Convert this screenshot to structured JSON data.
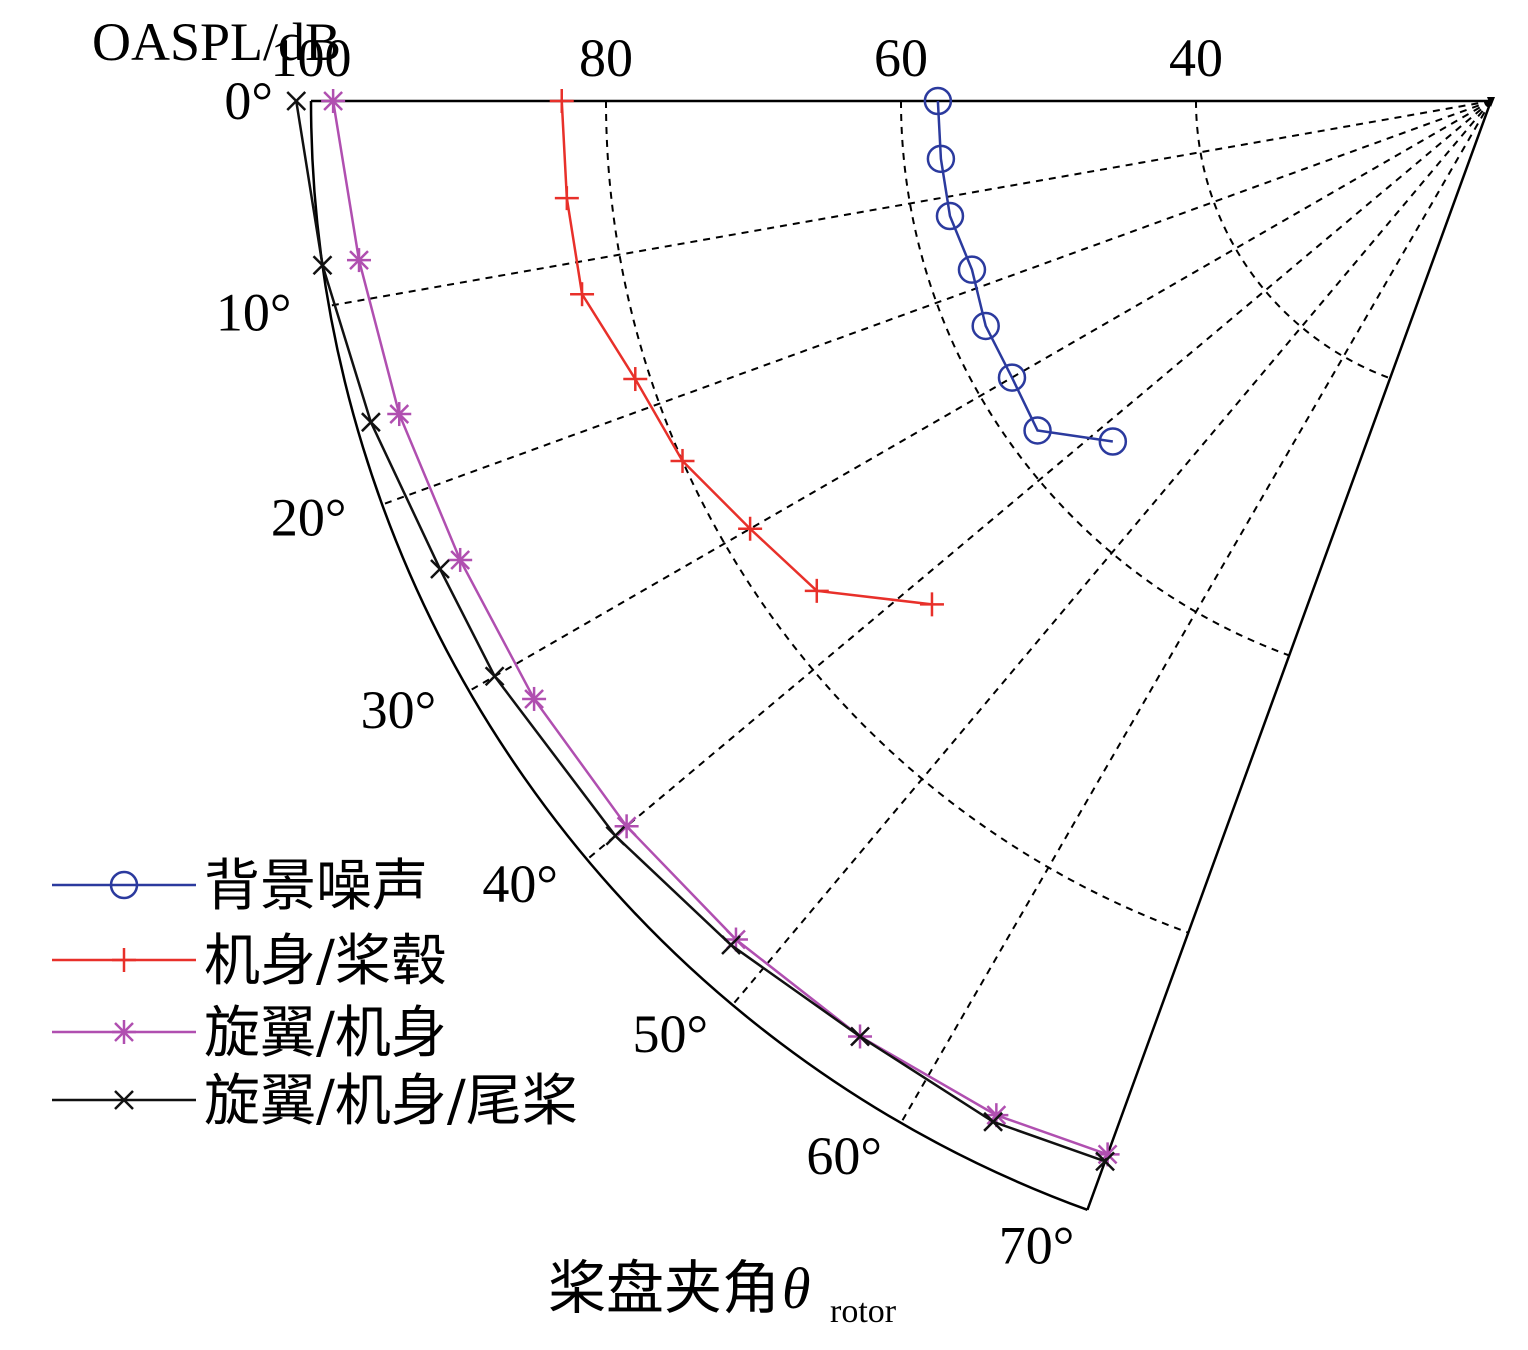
{
  "chart_data": {
    "type": "polar-sector",
    "radial_axis_label": "OASPL/dB",
    "radial_range": [
      20,
      100
    ],
    "radial_direction": "decreasing-outward-to-center",
    "radial_ticks": [
      100,
      80,
      60,
      40
    ],
    "radial_tick_labels": [
      "100",
      "80",
      "60",
      "40"
    ],
    "angle_axis_label": "桨盘夹角",
    "angle_symbol": "θ",
    "angle_subscript": "rotor",
    "angle_range_deg": [
      0,
      70
    ],
    "angle_ticks_deg": [
      0,
      10,
      20,
      30,
      40,
      50,
      60,
      70
    ],
    "angle_tick_labels": [
      "0°",
      "10°",
      "20°",
      "30°",
      "40°",
      "50°",
      "60°",
      "70°"
    ],
    "series": [
      {
        "name": "背景噪声",
        "color": "#2b3a9e",
        "marker": "circle",
        "angles": [
          0,
          6,
          12,
          18,
          24,
          30,
          36,
          42
        ],
        "values": [
          57.5,
          57.5,
          57.5,
          57.0,
          57.5,
          57.5,
          58.0,
          54.5
        ]
      },
      {
        "name": "机身/桨毂",
        "color": "#e8302a",
        "marker": "plus",
        "angles": [
          0,
          6,
          12,
          18,
          24,
          30,
          36,
          42
        ],
        "values": [
          83.0,
          83.0,
          83.0,
          81.0,
          80.0,
          78.0,
          76.5,
          71.0
        ]
      },
      {
        "name": "旋翼/机身",
        "color": "#b04fb0",
        "marker": "asterisk",
        "angles": [
          0,
          8,
          16,
          24,
          32,
          40,
          48,
          56,
          64,
          70
        ],
        "values": [
          98.5,
          97.5,
          97.0,
          96.5,
          96.5,
          96.5,
          96.5,
          96.5,
          96.5,
          96.0
        ]
      },
      {
        "name": "旋翼/机身/尾桨",
        "color": "#111111",
        "marker": "x",
        "angles": [
          0,
          8,
          16,
          24,
          30,
          40,
          48,
          56,
          64,
          70
        ],
        "values": [
          101.0,
          100.0,
          99.0,
          98.0,
          98.0,
          97.5,
          97.0,
          96.5,
          97.0,
          96.5
        ]
      }
    ],
    "legend": {
      "position": "bottom-left",
      "labels": [
        "背景噪声",
        "机身/桨毂",
        "旋翼/机身",
        "旋翼/机身/尾桨"
      ]
    }
  }
}
